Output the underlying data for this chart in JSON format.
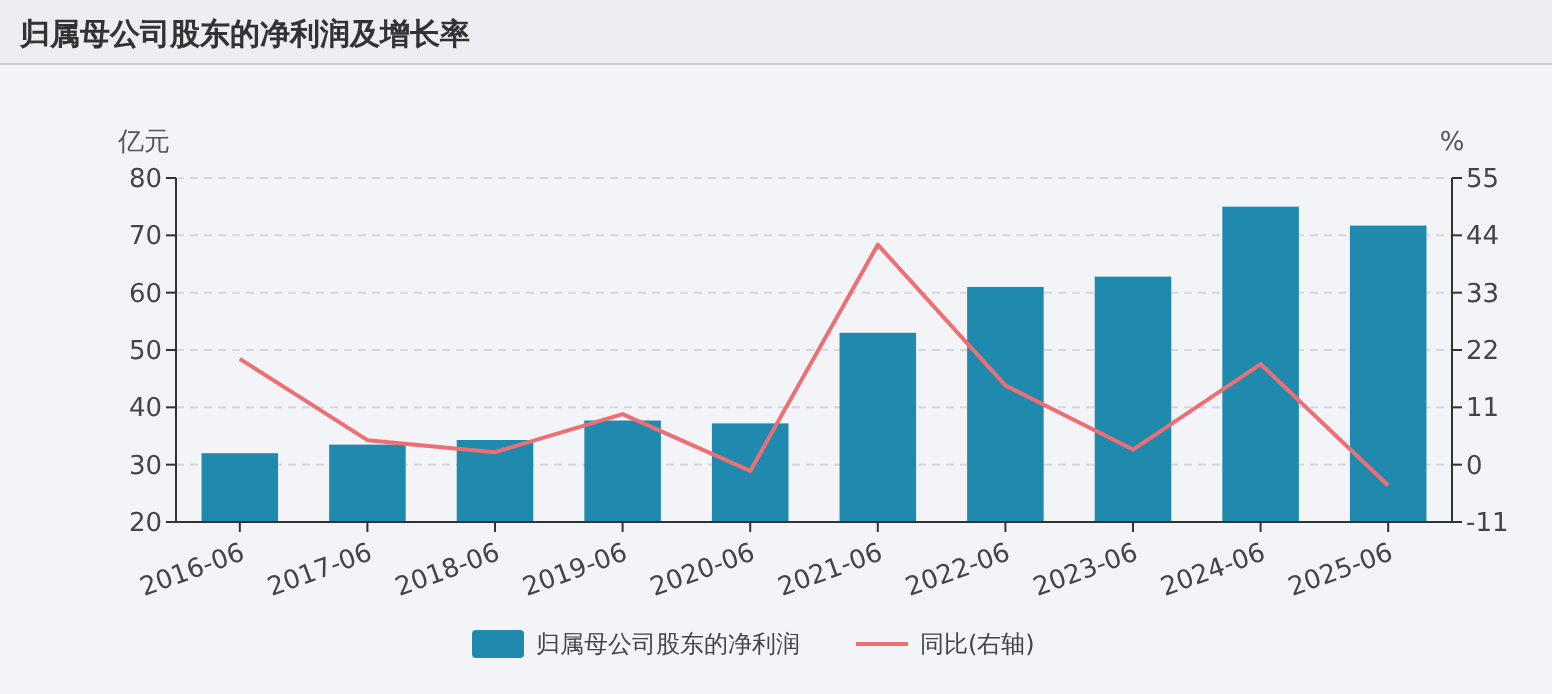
{
  "chart_data": {
    "type": "bar",
    "title": "归属母公司股东的净利润及增长率",
    "ylabel": "亿元",
    "y2label": "%",
    "categories": [
      "2016-06",
      "2017-06",
      "2018-06",
      "2019-06",
      "2020-06",
      "2021-06",
      "2022-06",
      "2023-06",
      "2024-06",
      "2025-06"
    ],
    "series": [
      {
        "name": "归属母公司股东的净利润",
        "color": "#1f8aad",
        "values": [
          32.0,
          33.5,
          34.3,
          37.7,
          37.2,
          53.0,
          61.0,
          62.8,
          75.0,
          71.7
        ]
      },
      {
        "name": "同比(右轴)",
        "type": "line",
        "axis": "y2",
        "color": "#ec6f74",
        "values": [
          20.3,
          4.7,
          2.4,
          9.7,
          -1.2,
          42.2,
          15.2,
          2.9,
          19.3,
          -4.0
        ]
      }
    ],
    "ylim": [
      20,
      80
    ],
    "yticks": [
      20,
      30,
      40,
      50,
      60,
      70,
      80
    ],
    "y2lim": [
      -11,
      55
    ],
    "y2ticks": [
      -11,
      0,
      11,
      22,
      33,
      44,
      55
    ],
    "grid": "y",
    "legend": "bottom",
    "marker": "none",
    "line_style": "solid"
  }
}
